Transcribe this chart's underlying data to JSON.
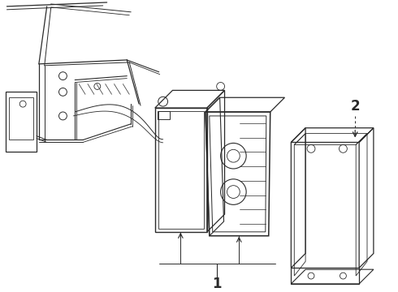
{
  "bg_color": "#ffffff",
  "line_color": "#2a2a2a",
  "label1": "1",
  "label2": "2",
  "fig_w": 4.9,
  "fig_h": 3.6,
  "dpi": 100
}
